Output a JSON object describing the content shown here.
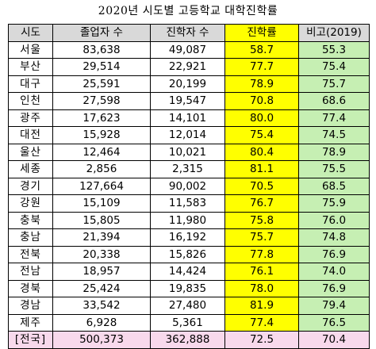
{
  "title": "2020년 시도별 고등학교 대학진학률",
  "headers": [
    "시도",
    "졸업자 수",
    "진학자 수",
    "진학률",
    "비고(2019)"
  ],
  "rows": [
    [
      "서울",
      "83,638",
      "49,087",
      "58.7",
      "55.3"
    ],
    [
      "부산",
      "29,514",
      "22,921",
      "77.7",
      "75.4"
    ],
    [
      "대구",
      "25,591",
      "20,199",
      "78.9",
      "75.7"
    ],
    [
      "인천",
      "27,598",
      "19,547",
      "70.8",
      "68.6"
    ],
    [
      "광주",
      "17,623",
      "14,101",
      "80.0",
      "77.4"
    ],
    [
      "대전",
      "15,928",
      "12,014",
      "75.4",
      "74.5"
    ],
    [
      "울산",
      "12,464",
      "10,021",
      "80.4",
      "78.9"
    ],
    [
      "세종",
      "2,856",
      "2,315",
      "81.1",
      "75.5"
    ],
    [
      "경기",
      "127,664",
      "90,002",
      "70.5",
      "68.5"
    ],
    [
      "강원",
      "15,109",
      "11,583",
      "76.7",
      "75.9"
    ],
    [
      "충북",
      "15,805",
      "11,980",
      "75.8",
      "76.0"
    ],
    [
      "충남",
      "21,394",
      "16,192",
      "75.7",
      "74.8"
    ],
    [
      "전북",
      "20,338",
      "15,826",
      "77.8",
      "76.9"
    ],
    [
      "전남",
      "18,957",
      "14,424",
      "76.1",
      "74.0"
    ],
    [
      "경북",
      "25,424",
      "19,835",
      "78.0",
      "76.9"
    ],
    [
      "경남",
      "33,542",
      "27,480",
      "81.9",
      "79.4"
    ],
    [
      "제주",
      "6,928",
      "5,361",
      "77.4",
      "76.5"
    ]
  ],
  "total": [
    "[전국]",
    "500,373",
    "362,888",
    "72.5",
    "70.4"
  ],
  "colors": {
    "header_bg": "#d9d9d9",
    "rate_bg": "#ffff00",
    "prev_bg": "#c6efb3",
    "total_bg": "#f8d9ec"
  }
}
